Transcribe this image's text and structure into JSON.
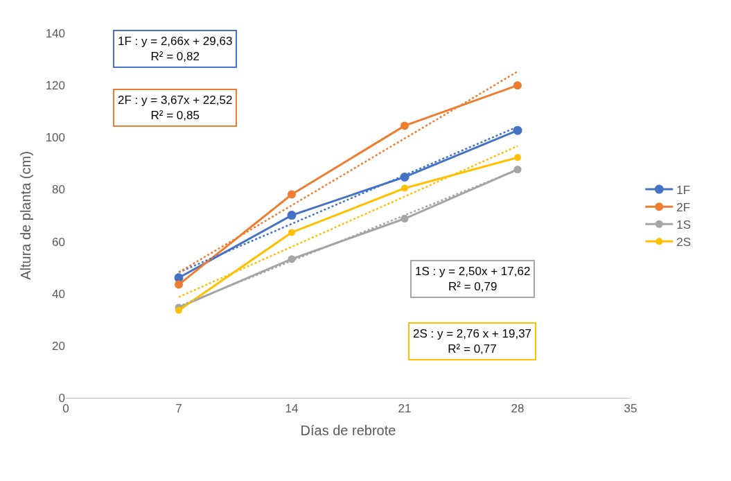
{
  "chart_data": {
    "type": "line",
    "xlabel": "Días de rebrote",
    "ylabel": "Altura de planta (cm)",
    "x": [
      7,
      14,
      21,
      28
    ],
    "series": [
      {
        "name": "1F",
        "color": "#4472c4",
        "values": [
          46.1,
          70.1,
          84.8,
          102.7
        ]
      },
      {
        "name": "2F",
        "color": "#ed7d31",
        "values": [
          43.5,
          78.1,
          104.5,
          120.0
        ]
      },
      {
        "name": "1S",
        "color": "#a5a5a5",
        "values": [
          34.7,
          53.3,
          68.8,
          87.7
        ]
      },
      {
        "name": "2S",
        "color": "#ffc000",
        "values": [
          33.6,
          63.5,
          80.5,
          92.3
        ]
      },
      {
        "type": "line",
        "color": "#4472c4",
        "values": [
          48.2,
          66.8,
          85.5,
          104.1
        ],
        "line_style": "dotted",
        "marker": "none"
      },
      {
        "type": "line",
        "color": "#ed7d31",
        "values": [
          48.2,
          73.9,
          99.6,
          125.3
        ],
        "line_style": "dotted",
        "marker": "none"
      },
      {
        "type": "line",
        "color": "#a5a5a5",
        "values": [
          35.1,
          52.6,
          70.1,
          87.6
        ],
        "line_style": "dotted",
        "marker": "none"
      },
      {
        "type": "line",
        "color": "#ffc000",
        "values": [
          38.7,
          58.0,
          77.3,
          96.7
        ],
        "line_style": "dotted",
        "marker": "none"
      }
    ],
    "xlim": [
      0,
      35
    ],
    "xticks": [
      0,
      7,
      14,
      21,
      28,
      35
    ],
    "ylim": [
      0,
      140
    ],
    "yticks": [
      0,
      20,
      40,
      60,
      80,
      100,
      120,
      140
    ],
    "grid": false,
    "legend": "right",
    "marker": "circle",
    "line_style": "solid",
    "annotations": [
      "1F : y = 2,66x + 29,63\nR² = 0,82",
      "2F : y = 3,67x + 22,52\nR² = 0,85",
      "1S : y = 2,50x + 17,62\nR² = 0,79",
      "2S : y = 2,76 x + 19,37\nR² = 0,77"
    ]
  }
}
